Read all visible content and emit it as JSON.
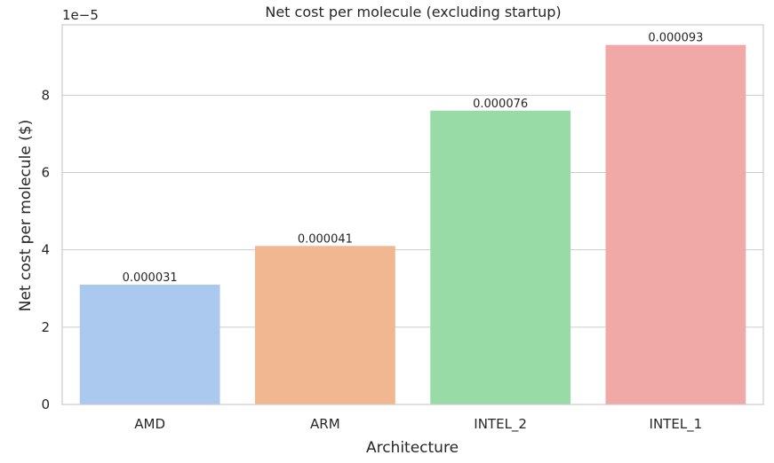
{
  "chart_data": {
    "type": "bar",
    "title": "Net cost per molecule (excluding startup)",
    "xlabel": "Architecture",
    "ylabel": "Net cost per molecule ($)",
    "y_offset_text": "1e−5",
    "categories": [
      "AMD",
      "ARM",
      "INTEL_2",
      "INTEL_1"
    ],
    "values": [
      3.1e-05,
      4.1e-05,
      7.6e-05,
      9.3e-05
    ],
    "bar_labels": [
      "0.000031",
      "0.000041",
      "0.000076",
      "0.000093"
    ],
    "bar_colors": [
      "#abc9ee",
      "#f0b790",
      "#99dba7",
      "#f1a9a7"
    ],
    "ylim": [
      0,
      9.82e-05
    ],
    "yticks": [
      0,
      2e-05,
      4e-05,
      6e-05,
      8e-05
    ],
    "ytick_labels": [
      "0",
      "2",
      "4",
      "6",
      "8"
    ],
    "grid": "horizontal",
    "legend": "none"
  }
}
